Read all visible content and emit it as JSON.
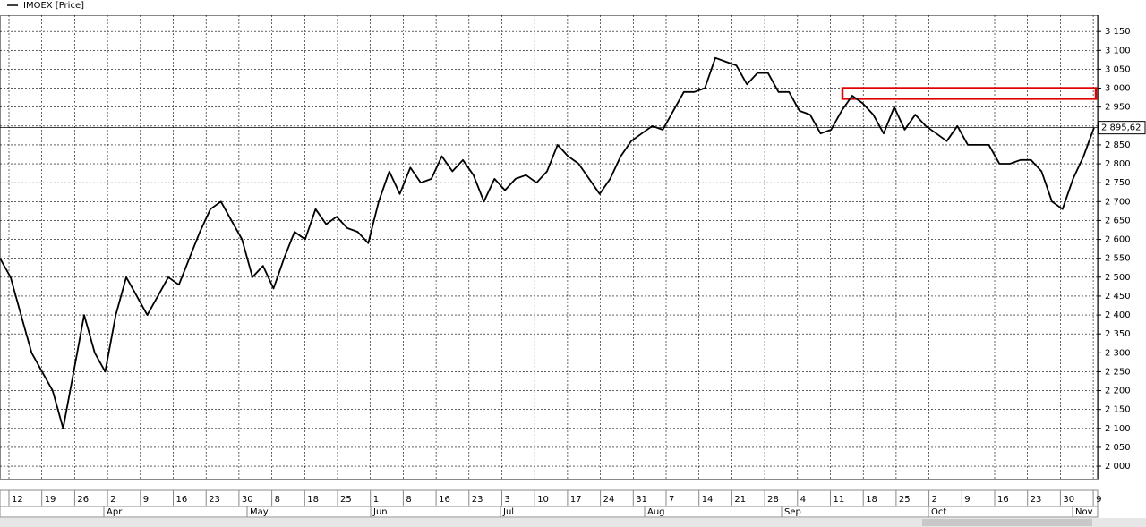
{
  "chart_data": {
    "type": "line",
    "legend_label": "IMOEX [Price]",
    "series": [
      {
        "name": "IMOEX [Price]",
        "color": "#000000",
        "values": [
          2550,
          2500,
          2400,
          2300,
          2250,
          2200,
          2100,
          2250,
          2400,
          2300,
          2250,
          2400,
          2500,
          2450,
          2400,
          2450,
          2500,
          2480,
          2550,
          2620,
          2680,
          2700,
          2650,
          2600,
          2500,
          2530,
          2470,
          2550,
          2620,
          2600,
          2680,
          2640,
          2660,
          2630,
          2620,
          2590,
          2700,
          2780,
          2720,
          2790,
          2750,
          2760,
          2820,
          2780,
          2810,
          2770,
          2700,
          2760,
          2730,
          2760,
          2770,
          2750,
          2780,
          2850,
          2820,
          2800,
          2760,
          2720,
          2760,
          2820,
          2860,
          2880,
          2900,
          2890,
          2940,
          2990,
          2990,
          3000,
          3080,
          3070,
          3060,
          3010,
          3040,
          3040,
          2990,
          2990,
          2940,
          2930,
          2880,
          2890,
          2940,
          2980,
          2960,
          2930,
          2880,
          2950,
          2890,
          2930,
          2900,
          2880,
          2860,
          2900,
          2850,
          2850,
          2850,
          2800,
          2800,
          2810,
          2810,
          2780,
          2700,
          2680,
          2760,
          2820,
          2895.62
        ]
      }
    ],
    "last_value": {
      "value": 2895.62,
      "label": "2 895,62"
    },
    "highlight_zone": [
      2972,
      3000
    ],
    "ylim": [
      1967,
      3193
    ],
    "yticks": [
      {
        "value": 2000,
        "label": "2 000"
      },
      {
        "value": 2050,
        "label": "2 050"
      },
      {
        "value": 2100,
        "label": "2 100"
      },
      {
        "value": 2150,
        "label": "2 150"
      },
      {
        "value": 2200,
        "label": "2 200"
      },
      {
        "value": 2250,
        "label": "2 250"
      },
      {
        "value": 2300,
        "label": "2 300"
      },
      {
        "value": 2350,
        "label": "2 350"
      },
      {
        "value": 2400,
        "label": "2 400"
      },
      {
        "value": 2450,
        "label": "2 450"
      },
      {
        "value": 2500,
        "label": "2 500"
      },
      {
        "value": 2550,
        "label": "2 550"
      },
      {
        "value": 2600,
        "label": "2 600"
      },
      {
        "value": 2650,
        "label": "2 650"
      },
      {
        "value": 2700,
        "label": "2 700"
      },
      {
        "value": 2750,
        "label": "2 750"
      },
      {
        "value": 2800,
        "label": "2 800"
      },
      {
        "value": 2850,
        "label": "2 850"
      },
      {
        "value": 2900,
        "label": "2 900"
      },
      {
        "value": 2950,
        "label": "2 950"
      },
      {
        "value": 3000,
        "label": "3 000"
      },
      {
        "value": 3050,
        "label": "3 050"
      },
      {
        "value": 3100,
        "label": "3 100"
      },
      {
        "value": 3150,
        "label": "3 150"
      }
    ],
    "x_tick_labels": [
      "12",
      "19",
      "26",
      "2",
      "9",
      "16",
      "23",
      "30",
      "8",
      "18",
      "25",
      "1",
      "8",
      "16",
      "23",
      "3",
      "10",
      "17",
      "24",
      "31",
      "7",
      "14",
      "21",
      "28",
      "4",
      "11",
      "18",
      "25",
      "2",
      "9",
      "16",
      "23",
      "30",
      "9"
    ],
    "month_labels": [
      "Apr",
      "May",
      "Jun",
      "Jul",
      "Aug",
      "Sep",
      "Oct",
      "Nov"
    ],
    "grid": true
  }
}
